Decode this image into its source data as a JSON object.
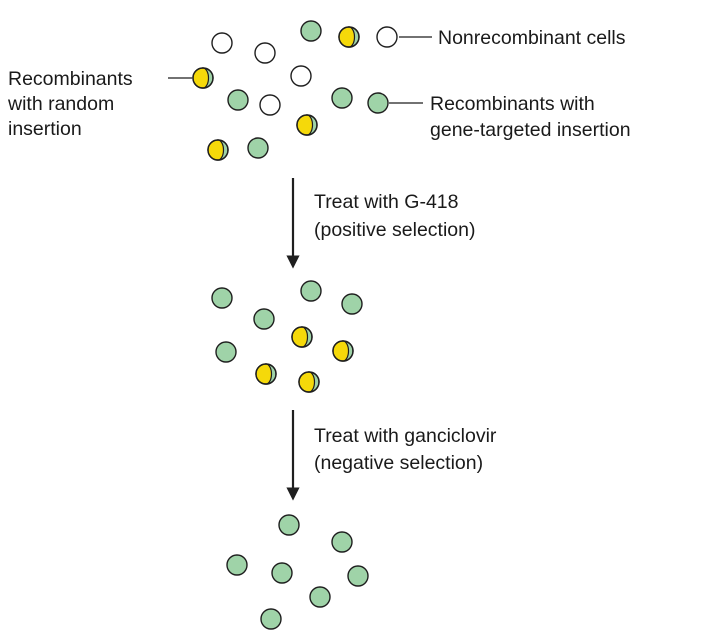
{
  "colors": {
    "nonrecombinant_fill": "#ffffff",
    "targeted_fill": "#9fd3a8",
    "random_insert_fill": "#f5d90a",
    "stroke": "#1f1f1f"
  },
  "labels": {
    "nonrecombinant": "Nonrecombinant cells",
    "random_line1": "Recombinants",
    "random_line2": "with random",
    "random_line3": "insertion",
    "targeted_line1": "Recombinants with",
    "targeted_line2": "gene-targeted insertion"
  },
  "steps": [
    {
      "line1": "Treat with G-418",
      "line2": "(positive selection)"
    },
    {
      "line1": "Treat with ganciclovir",
      "line2": "(negative selection)"
    }
  ]
}
